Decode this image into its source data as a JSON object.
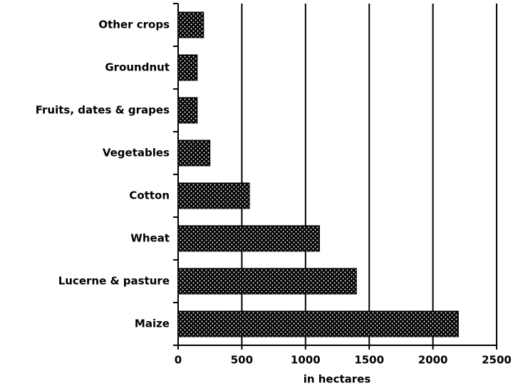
{
  "chart_data": {
    "type": "bar",
    "orientation": "horizontal",
    "x_label": "in hectares",
    "categories": [
      "Maize",
      "Lucerne & pasture",
      "Wheat",
      "Cotton",
      "Vegetables",
      "Fruits,  dates & grapes",
      "Groundnut",
      "Other crops"
    ],
    "values": [
      2200,
      1400,
      1110,
      560,
      250,
      150,
      150,
      200
    ],
    "color": "#000000",
    "xlim": [
      0,
      2500
    ],
    "xticks": [
      0,
      500,
      1000,
      1500,
      2000,
      2500
    ],
    "grid": true
  }
}
